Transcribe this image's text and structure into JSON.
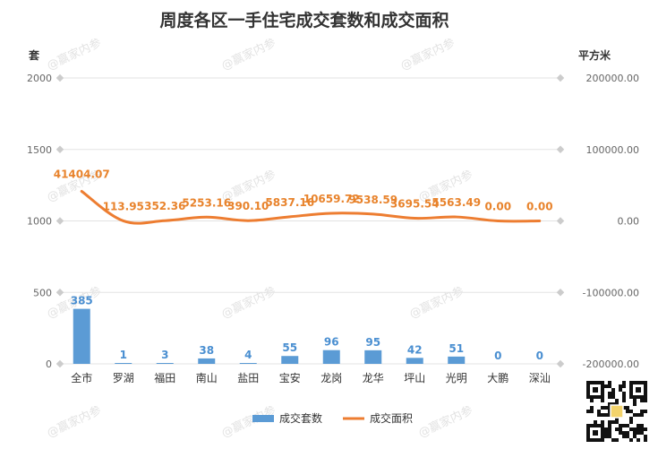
{
  "chart_data": {
    "type": "bar",
    "title": "周度各区一手住宅成交套数和成交面积",
    "left_axis_unit": "套",
    "right_axis_unit": "平方米",
    "left_ylim": [
      0,
      2000
    ],
    "left_ticks": [
      "0",
      "500",
      "1000",
      "1500",
      "2000"
    ],
    "right_ylim": [
      -200000,
      200000
    ],
    "right_ticks": [
      "-200000.00",
      "-100000.00",
      "0.00",
      "100000.00",
      "200000.00"
    ],
    "categories": [
      "全市",
      "罗湖",
      "福田",
      "南山",
      "盐田",
      "宝安",
      "龙岗",
      "龙华",
      "坪山",
      "光明",
      "大鹏",
      "深汕"
    ],
    "series": [
      {
        "name": "成交套数",
        "type": "bar",
        "axis": "left",
        "color": "#5b9bd5",
        "values": [
          385,
          1,
          3,
          38,
          4,
          55,
          96,
          95,
          42,
          51,
          0,
          0
        ],
        "labels": [
          "385",
          "1",
          "3",
          "38",
          "4",
          "55",
          "96",
          "95",
          "42",
          "51",
          "0",
          "0"
        ]
      },
      {
        "name": "成交面积",
        "type": "line",
        "axis": "right",
        "color": "#ed7d31",
        "values": [
          41404.07,
          113.95,
          352.36,
          5253.16,
          390.1,
          5837.16,
          10659.72,
          9538.59,
          3695.54,
          5563.49,
          0.0,
          0.0
        ],
        "labels": [
          "41404.07",
          "113.95",
          "352.36",
          "5253.16",
          "390.10",
          "5837.16",
          "10659.72",
          "9538.59",
          "3695.54",
          "5563.49",
          "0.00",
          "0.00"
        ]
      }
    ],
    "grid": true,
    "legend": "bottom"
  },
  "watermark": "@赢家内参"
}
